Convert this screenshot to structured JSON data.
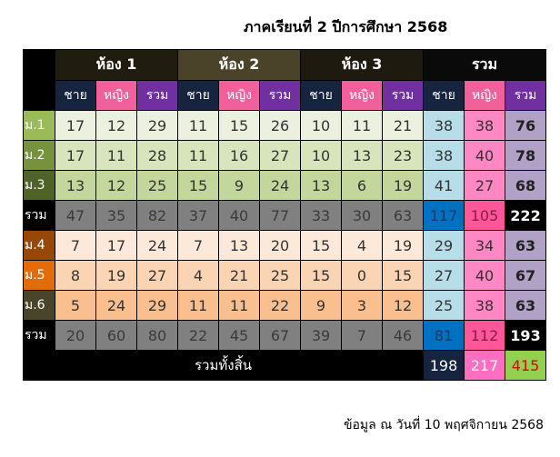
{
  "title": "ภาคเรียนที่ 2   ปีการศึกษา 2568",
  "footer": "ข้อมูล ณ วันที่ 10 พฤศจิกายน 2568",
  "groups": [
    "ห้อง 1",
    "ห้อง 2",
    "ห้อง 3",
    "รวม"
  ],
  "subheaders": [
    "ชาย",
    "หญิง",
    "รวม"
  ],
  "rows": [
    {
      "label": "ม.1",
      "values": [
        17,
        12,
        29,
        11,
        15,
        26,
        10,
        11,
        21,
        38,
        38,
        76
      ]
    },
    {
      "label": "ม.2",
      "values": [
        17,
        11,
        28,
        11,
        16,
        27,
        10,
        13,
        23,
        38,
        40,
        78
      ]
    },
    {
      "label": "ม.3",
      "values": [
        13,
        12,
        25,
        15,
        9,
        24,
        13,
        6,
        19,
        41,
        27,
        68
      ]
    },
    {
      "label": "รวม",
      "values": [
        47,
        35,
        82,
        37,
        40,
        77,
        33,
        30,
        63,
        117,
        105,
        222
      ]
    },
    {
      "label": "ม.4",
      "values": [
        7,
        17,
        24,
        7,
        13,
        20,
        15,
        4,
        19,
        29,
        34,
        63
      ]
    },
    {
      "label": "ม.5",
      "values": [
        8,
        19,
        27,
        4,
        21,
        25,
        15,
        0,
        15,
        27,
        40,
        67
      ]
    },
    {
      "label": "ม.6",
      "values": [
        5,
        24,
        29,
        11,
        11,
        22,
        9,
        3,
        12,
        25,
        38,
        63
      ]
    },
    {
      "label": "รวม",
      "values": [
        20,
        60,
        80,
        22,
        45,
        67,
        39,
        7,
        46,
        81,
        112,
        193
      ]
    }
  ],
  "grand_total": {
    "label": "รวมทั้งสิ้น",
    "male": 198,
    "female": 217,
    "total": 415
  },
  "colors": {
    "row_labels": [
      "#9bbb59",
      "#76923c",
      "#4f6228",
      "#000000",
      "#974806",
      "#e36c09",
      "#4a452a",
      "#000000"
    ],
    "row_cells": [
      "#ebf1de",
      "#d7e4bc",
      "#c3d69b",
      "#808080",
      "#fde9d9",
      "#fbd4b4",
      "#fabf8f",
      "#808080"
    ]
  }
}
